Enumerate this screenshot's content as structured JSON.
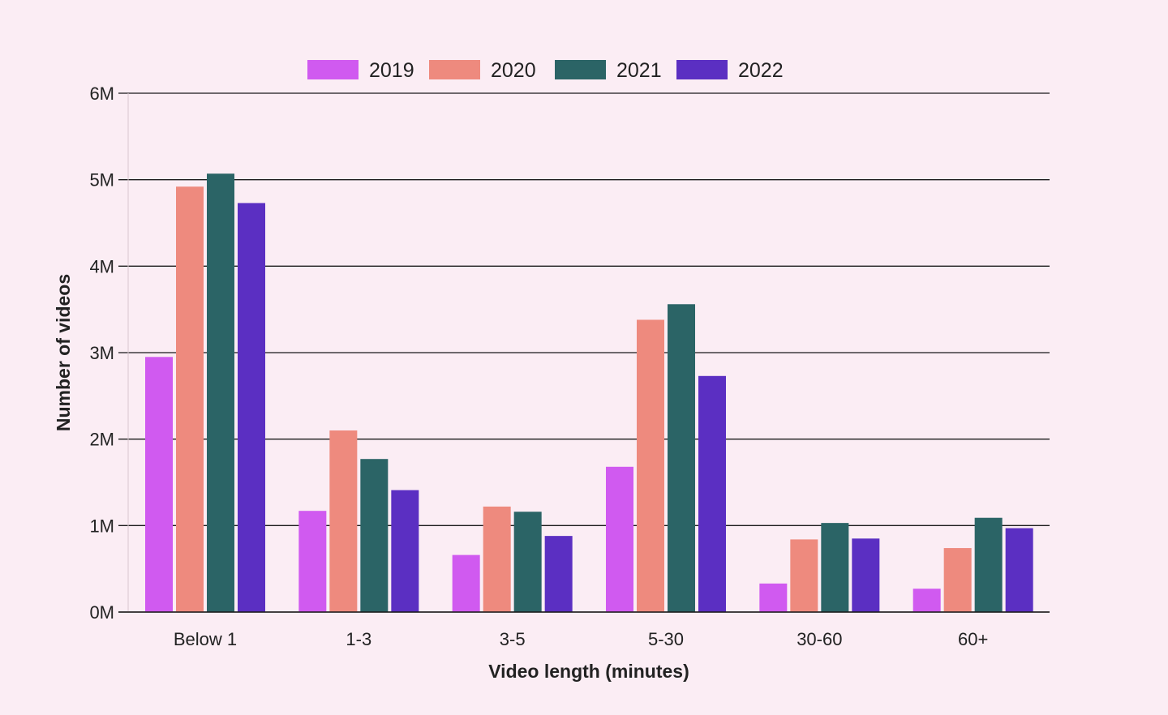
{
  "chart_data": {
    "type": "bar",
    "xlabel": "Video length (minutes)",
    "ylabel": "Number of videos",
    "categories": [
      "Below 1",
      "1-3",
      "3-5",
      "5-30",
      "30-60",
      "60+"
    ],
    "yticks": [
      "0M",
      "1M",
      "2M",
      "3M",
      "4M",
      "5M",
      "6M"
    ],
    "ylim": [
      0,
      6000000
    ],
    "grid": true,
    "legend_position": "top-center",
    "series": [
      {
        "name": "2019",
        "color": "#d05af0",
        "values": [
          2950000,
          1170000,
          660000,
          1680000,
          330000,
          270000
        ]
      },
      {
        "name": "2020",
        "color": "#ee8a7e",
        "values": [
          4920000,
          2100000,
          1220000,
          3380000,
          840000,
          740000
        ]
      },
      {
        "name": "2021",
        "color": "#2b6466",
        "values": [
          5070000,
          1770000,
          1160000,
          3560000,
          1030000,
          1090000
        ]
      },
      {
        "name": "2022",
        "color": "#5b2fc2",
        "values": [
          4730000,
          1410000,
          880000,
          2730000,
          850000,
          970000
        ]
      }
    ]
  }
}
